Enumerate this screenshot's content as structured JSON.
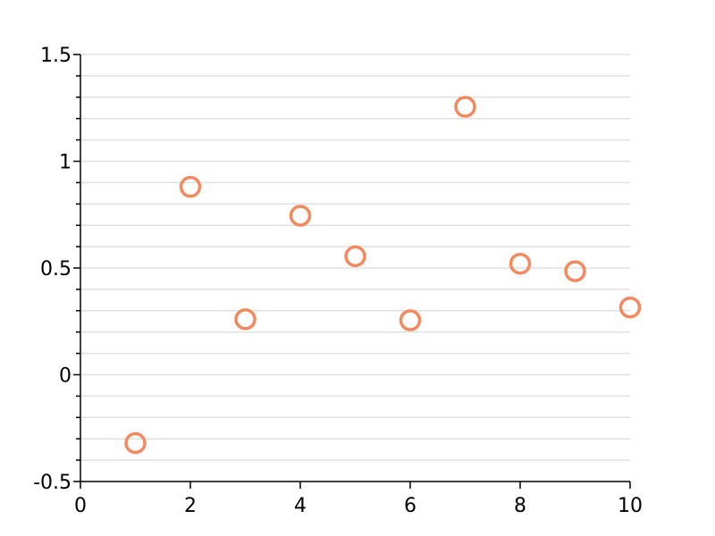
{
  "chart_data": {
    "type": "scatter",
    "title": "",
    "xlabel": "",
    "ylabel": "",
    "xlim": [
      0,
      10
    ],
    "ylim": [
      -0.5,
      1.5
    ],
    "x_ticks": [
      0,
      2,
      4,
      6,
      8,
      10
    ],
    "x_tick_labels": [
      "0",
      "2",
      "4",
      "6",
      "8",
      "10"
    ],
    "y_ticks": [
      -0.5,
      0,
      0.5,
      1,
      1.5
    ],
    "y_tick_labels": [
      "-0.5",
      "0",
      "0.5",
      "1",
      "1.5"
    ],
    "y_minor_step": 0.1,
    "grid": {
      "x": false,
      "y": true
    },
    "marker": "open-circle",
    "color": "#f4895f",
    "series": [
      {
        "x": [
          1,
          2,
          3,
          4,
          5,
          6,
          7,
          8,
          9,
          10
        ],
        "y": [
          -0.32,
          0.88,
          0.26,
          0.745,
          0.555,
          0.255,
          1.255,
          0.52,
          0.485,
          0.315
        ]
      }
    ]
  }
}
